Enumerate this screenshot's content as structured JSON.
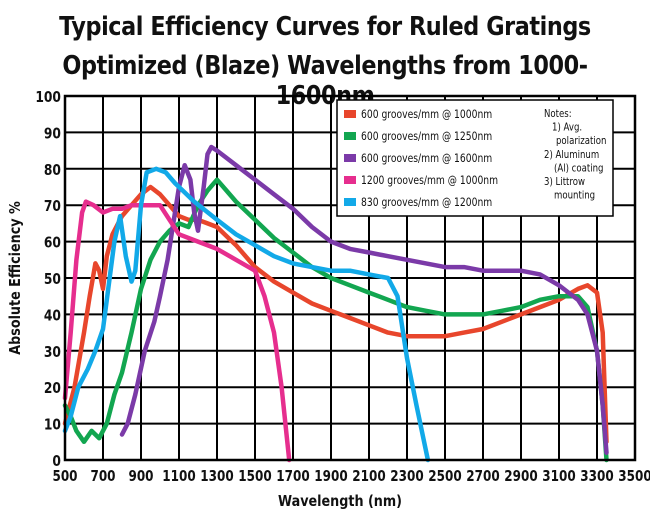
{
  "chart_data": {
    "type": "line",
    "title": "Typical Efficiency Curves  for Ruled Gratings",
    "subtitle": "Optimized (Blaze) Wavelengths from 1000-1600nm",
    "xlabel": "Wavelength (nm)",
    "ylabel": "Absolute Efficiency %",
    "xlim": [
      500,
      3500
    ],
    "ylim": [
      0,
      100
    ],
    "x_ticks": [
      500,
      700,
      900,
      1100,
      1300,
      1500,
      1700,
      1900,
      2100,
      2300,
      2500,
      2700,
      2900,
      3100,
      3300,
      3500
    ],
    "y_ticks": [
      0,
      10,
      20,
      30,
      40,
      50,
      60,
      70,
      80,
      90,
      100
    ],
    "grid": true,
    "legend_position": "top-right",
    "notes": [
      "Notes:",
      "1) Avg.",
      "polarization",
      "2) Aluminum",
      "(Al) coating",
      "3) Littrow",
      "mounting"
    ],
    "series": [
      {
        "name": "600 grooves/mm @ 1000nm",
        "color": "#e8462c",
        "points": [
          [
            500,
            10
          ],
          [
            550,
            20
          ],
          [
            600,
            35
          ],
          [
            630,
            45
          ],
          [
            660,
            54
          ],
          [
            680,
            52
          ],
          [
            700,
            47
          ],
          [
            720,
            56
          ],
          [
            750,
            62
          ],
          [
            800,
            67
          ],
          [
            850,
            70
          ],
          [
            900,
            73
          ],
          [
            950,
            75
          ],
          [
            1000,
            73
          ],
          [
            1050,
            70
          ],
          [
            1100,
            67
          ],
          [
            1150,
            66
          ],
          [
            1200,
            66
          ],
          [
            1250,
            65
          ],
          [
            1300,
            64
          ],
          [
            1400,
            59
          ],
          [
            1500,
            53
          ],
          [
            1600,
            49
          ],
          [
            1700,
            46
          ],
          [
            1800,
            43
          ],
          [
            1900,
            41
          ],
          [
            2000,
            39
          ],
          [
            2100,
            37
          ],
          [
            2200,
            35
          ],
          [
            2300,
            34
          ],
          [
            2400,
            34
          ],
          [
            2500,
            34
          ],
          [
            2600,
            35
          ],
          [
            2700,
            36
          ],
          [
            2800,
            38
          ],
          [
            2900,
            40
          ],
          [
            3000,
            42
          ],
          [
            3100,
            44
          ],
          [
            3200,
            47
          ],
          [
            3250,
            48
          ],
          [
            3300,
            46
          ],
          [
            3330,
            35
          ],
          [
            3350,
            5
          ]
        ]
      },
      {
        "name": "600 grooves/mm @ 1250nm",
        "color": "#12a650",
        "points": [
          [
            500,
            15
          ],
          [
            530,
            12
          ],
          [
            560,
            8
          ],
          [
            600,
            5
          ],
          [
            640,
            8
          ],
          [
            680,
            6
          ],
          [
            720,
            10
          ],
          [
            760,
            18
          ],
          [
            800,
            24
          ],
          [
            850,
            35
          ],
          [
            900,
            47
          ],
          [
            950,
            55
          ],
          [
            1000,
            60
          ],
          [
            1050,
            63
          ],
          [
            1100,
            65
          ],
          [
            1150,
            64
          ],
          [
            1200,
            70
          ],
          [
            1250,
            74
          ],
          [
            1300,
            77
          ],
          [
            1350,
            74
          ],
          [
            1400,
            71
          ],
          [
            1500,
            66
          ],
          [
            1600,
            61
          ],
          [
            1700,
            57
          ],
          [
            1800,
            53
          ],
          [
            1900,
            50
          ],
          [
            2000,
            48
          ],
          [
            2100,
            46
          ],
          [
            2200,
            44
          ],
          [
            2300,
            42
          ],
          [
            2400,
            41
          ],
          [
            2500,
            40
          ],
          [
            2600,
            40
          ],
          [
            2700,
            40
          ],
          [
            2800,
            41
          ],
          [
            2900,
            42
          ],
          [
            3000,
            44
          ],
          [
            3100,
            45
          ],
          [
            3200,
            45
          ],
          [
            3250,
            42
          ],
          [
            3300,
            30
          ],
          [
            3330,
            15
          ],
          [
            3350,
            0
          ]
        ]
      },
      {
        "name": "600 grooves/mm @ 1600nm",
        "color": "#7b3aa8",
        "points": [
          [
            800,
            7
          ],
          [
            830,
            10
          ],
          [
            870,
            18
          ],
          [
            920,
            30
          ],
          [
            970,
            38
          ],
          [
            1000,
            45
          ],
          [
            1040,
            55
          ],
          [
            1070,
            65
          ],
          [
            1100,
            75
          ],
          [
            1130,
            81
          ],
          [
            1160,
            77
          ],
          [
            1180,
            68
          ],
          [
            1200,
            63
          ],
          [
            1230,
            75
          ],
          [
            1250,
            84
          ],
          [
            1270,
            86
          ],
          [
            1300,
            85
          ],
          [
            1400,
            81
          ],
          [
            1500,
            77
          ],
          [
            1600,
            73
          ],
          [
            1700,
            69
          ],
          [
            1800,
            64
          ],
          [
            1900,
            60
          ],
          [
            2000,
            58
          ],
          [
            2100,
            57
          ],
          [
            2200,
            56
          ],
          [
            2300,
            55
          ],
          [
            2400,
            54
          ],
          [
            2500,
            53
          ],
          [
            2600,
            53
          ],
          [
            2700,
            52
          ],
          [
            2800,
            52
          ],
          [
            2900,
            52
          ],
          [
            3000,
            51
          ],
          [
            3100,
            48
          ],
          [
            3150,
            46
          ],
          [
            3200,
            44
          ],
          [
            3250,
            40
          ],
          [
            3300,
            30
          ],
          [
            3330,
            15
          ],
          [
            3350,
            2
          ]
        ]
      },
      {
        "name": "1200 grooves/mm @ 1000nm",
        "color": "#e62e8e",
        "points": [
          [
            500,
            17
          ],
          [
            530,
            35
          ],
          [
            560,
            55
          ],
          [
            590,
            68
          ],
          [
            610,
            71
          ],
          [
            650,
            70
          ],
          [
            700,
            68
          ],
          [
            750,
            69
          ],
          [
            800,
            69
          ],
          [
            850,
            70
          ],
          [
            900,
            70
          ],
          [
            950,
            70
          ],
          [
            1000,
            70
          ],
          [
            1050,
            66
          ],
          [
            1100,
            62
          ],
          [
            1200,
            60
          ],
          [
            1300,
            58
          ],
          [
            1400,
            55
          ],
          [
            1500,
            52
          ],
          [
            1550,
            45
          ],
          [
            1600,
            35
          ],
          [
            1640,
            20
          ],
          [
            1670,
            5
          ],
          [
            1680,
            0
          ]
        ]
      },
      {
        "name": "830 grooves/mm @ 1200nm",
        "color": "#12a9e8",
        "points": [
          [
            500,
            8
          ],
          [
            530,
            12
          ],
          [
            570,
            20
          ],
          [
            620,
            25
          ],
          [
            660,
            30
          ],
          [
            700,
            36
          ],
          [
            730,
            48
          ],
          [
            760,
            60
          ],
          [
            790,
            67
          ],
          [
            820,
            56
          ],
          [
            850,
            49
          ],
          [
            870,
            52
          ],
          [
            900,
            70
          ],
          [
            930,
            79
          ],
          [
            980,
            80
          ],
          [
            1030,
            79
          ],
          [
            1080,
            76
          ],
          [
            1120,
            74
          ],
          [
            1180,
            71
          ],
          [
            1300,
            66
          ],
          [
            1400,
            62
          ],
          [
            1500,
            59
          ],
          [
            1600,
            56
          ],
          [
            1700,
            54
          ],
          [
            1800,
            53
          ],
          [
            1900,
            52
          ],
          [
            2000,
            52
          ],
          [
            2100,
            51
          ],
          [
            2200,
            50
          ],
          [
            2250,
            45
          ],
          [
            2300,
            28
          ],
          [
            2350,
            15
          ],
          [
            2390,
            5
          ],
          [
            2410,
            0
          ]
        ]
      }
    ]
  }
}
